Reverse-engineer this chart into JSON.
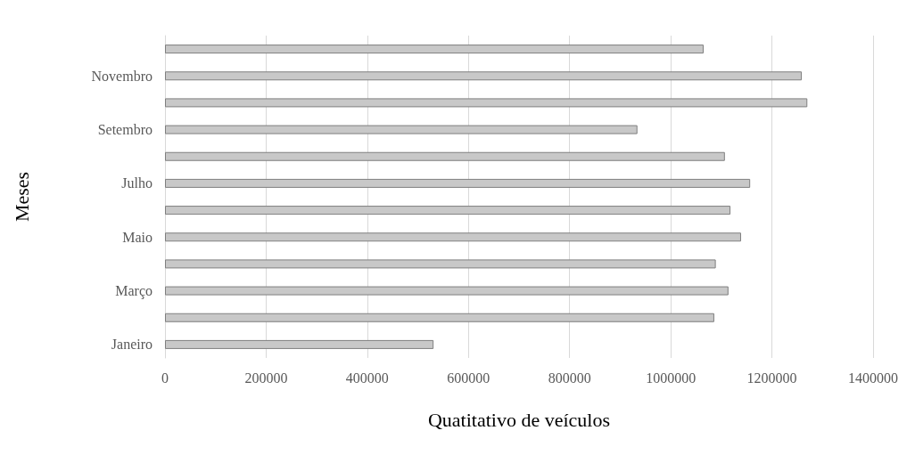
{
  "chart_data": {
    "type": "bar",
    "orientation": "horizontal",
    "xlabel": "Quatitativo de veículos",
    "ylabel": "Meses",
    "categories": [
      null,
      "Novembro",
      null,
      "Setembro",
      null,
      "Julho",
      null,
      "Maio",
      null,
      "Março",
      null,
      "Janeiro"
    ],
    "values": [
      1065000,
      1259000,
      1270000,
      934000,
      1107000,
      1157000,
      1118000,
      1139000,
      1089000,
      1114000,
      1086000,
      531000
    ],
    "color": "#c8c8c8",
    "xlim": [
      0,
      1400000
    ],
    "xticks": [
      0,
      200000,
      400000,
      600000,
      800000,
      1000000,
      1200000,
      1400000
    ],
    "grid": "x"
  }
}
